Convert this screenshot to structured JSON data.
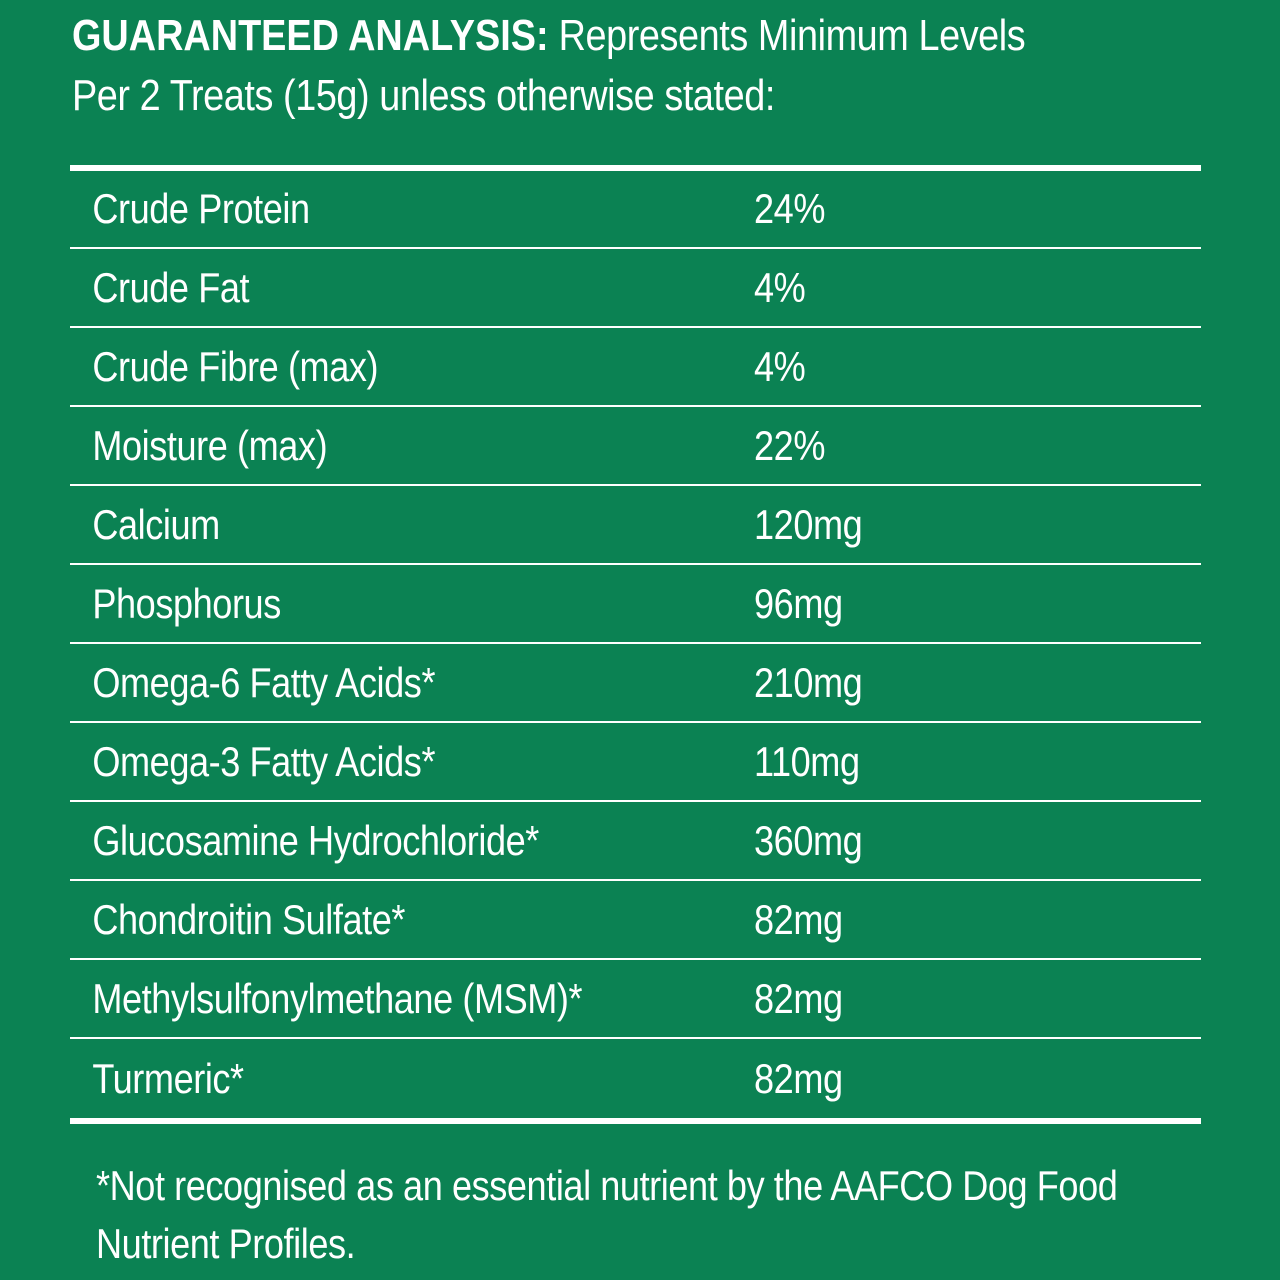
{
  "heading": {
    "bold": "GUARANTEED ANALYSIS:",
    "text": "Represents Minimum Levels Per 2 Treats (15g) unless otherwise stated:"
  },
  "table": {
    "rows": [
      {
        "name": "Crude Protein",
        "value": "24%"
      },
      {
        "name": "Crude Fat",
        "value": "4%"
      },
      {
        "name": "Crude Fibre (max)",
        "value": "4%"
      },
      {
        "name": "Moisture (max)",
        "value": "22%"
      },
      {
        "name": "Calcium",
        "value": "120mg"
      },
      {
        "name": "Phosphorus",
        "value": "96mg"
      },
      {
        "name": "Omega-6 Fatty Acids*",
        "value": "210mg"
      },
      {
        "name": "Omega-3 Fatty Acids*",
        "value": "110mg"
      },
      {
        "name": "Glucosamine Hydrochloride*",
        "value": "360mg"
      },
      {
        "name": "Chondroitin Sulfate*",
        "value": "82mg"
      },
      {
        "name": "Methylsulfonylmethane (MSM)*",
        "value": "82mg"
      },
      {
        "name": "Turmeric*",
        "value": "82mg"
      }
    ]
  },
  "footnote": "*Not recognised as an essential nutrient by the AAFCO Dog Food Nutrient Profiles.",
  "colors": {
    "background": "#0b8253",
    "text": "#ffffff"
  }
}
